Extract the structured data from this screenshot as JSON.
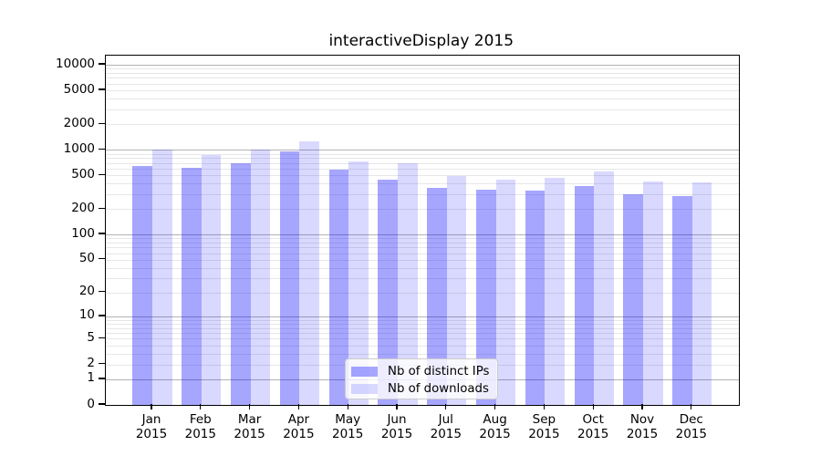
{
  "title": "interactiveDisplay 2015",
  "legend": {
    "position": "lower center",
    "items": [
      {
        "label": "Nb of distinct IPs",
        "color": "rgba(0,0,255,0.35)"
      },
      {
        "label": "Nb of downloads",
        "color": "rgba(0,0,255,0.15)"
      }
    ]
  },
  "colors": {
    "bar_distinct_ips": "rgba(0,0,255,0.35)",
    "bar_downloads": "rgba(0,0,255,0.15)",
    "major_gridline": "#b3b3b3",
    "minor_gridline": "#e7e7e7",
    "axis": "#000000",
    "background": "#ffffff"
  },
  "chart_data": {
    "type": "bar",
    "title": "interactiveDisplay 2015",
    "categories": [
      "Jan",
      "Feb",
      "Mar",
      "Apr",
      "May",
      "Jun",
      "Jul",
      "Aug",
      "Sep",
      "Oct",
      "Nov",
      "Dec"
    ],
    "year_label": "2015",
    "series": [
      {
        "name": "Nb of distinct IPs",
        "color": "rgba(0,0,255,0.35)",
        "values": [
          640,
          620,
          700,
          960,
          590,
          445,
          355,
          335,
          330,
          370,
          300,
          285
        ]
      },
      {
        "name": "Nb of downloads",
        "color": "rgba(0,0,255,0.15)",
        "values": [
          1000,
          860,
          1000,
          1260,
          730,
          700,
          490,
          440,
          470,
          550,
          420,
          410
        ]
      }
    ],
    "xlabel": "",
    "ylabel": "",
    "yscale": "log1p",
    "ylim": [
      0,
      12800
    ],
    "yticks": [
      0,
      1,
      2,
      5,
      10,
      20,
      50,
      100,
      200,
      500,
      1000,
      2000,
      5000,
      10000
    ],
    "major_grid_values": [
      1,
      10,
      100,
      1000,
      10000
    ],
    "grid": true,
    "legend_position": "lower center"
  }
}
